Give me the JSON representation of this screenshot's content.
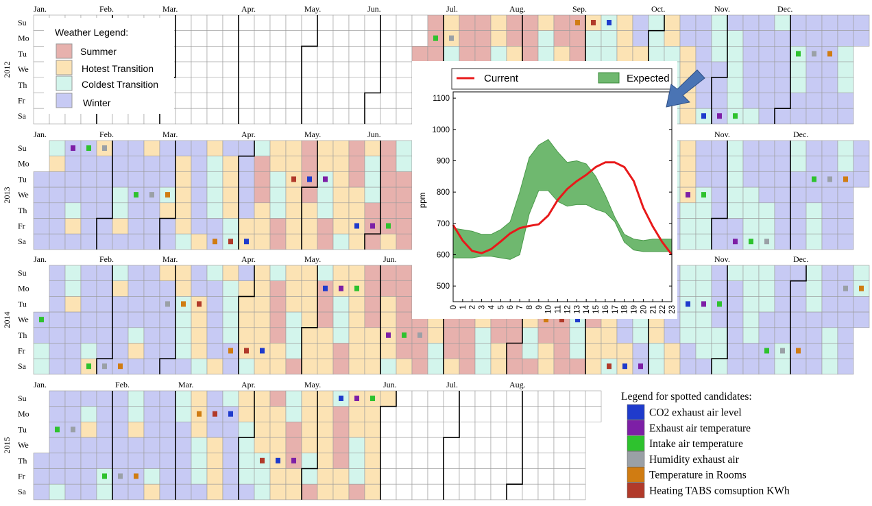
{
  "months": [
    "Jan.",
    "Feb.",
    "Mar.",
    "Apr.",
    "May.",
    "Jun.",
    "Jul.",
    "Aug.",
    "Sep.",
    "Oct.",
    "Nov.",
    "Dec."
  ],
  "weekdays": [
    "Su",
    "Mo",
    "Tu",
    "We",
    "Th",
    "Fr",
    "Sa"
  ],
  "years": [
    "2012",
    "2013",
    "2014",
    "2015"
  ],
  "weather_legend": {
    "title": "Weather Legend:",
    "items": [
      {
        "label": "Summer",
        "color": "#e7b1ad"
      },
      {
        "label": "Hotest Transition",
        "color": "#fce3b4"
      },
      {
        "label": "Coldest Transition",
        "color": "#d3f5ec"
      },
      {
        "label": "Winter",
        "color": "#c7caf4"
      }
    ]
  },
  "candidate_legend": {
    "title": "Legend for spotted candidates:",
    "items": [
      {
        "label": "CO2 exhaust air level",
        "color": "#1f3bcc"
      },
      {
        "label": "Exhaust air temperature",
        "color": "#7d1fa6"
      },
      {
        "label": "Intake air temperature",
        "color": "#2ec22e"
      },
      {
        "label": "Humidity exhaust air",
        "color": "#9aa0a6"
      },
      {
        "label": "Temperature in Rooms",
        "color": "#d07c12"
      },
      {
        "label": "Heating TABS comsuption KWh",
        "color": "#b13a2a"
      }
    ]
  },
  "chart_data": {
    "type": "line",
    "xlabel": "",
    "ylabel": "ppm",
    "x": [
      0,
      1,
      2,
      3,
      4,
      5,
      6,
      7,
      8,
      9,
      10,
      11,
      12,
      13,
      14,
      15,
      16,
      17,
      18,
      19,
      20,
      21,
      22,
      23
    ],
    "xlim": [
      0,
      23
    ],
    "ylim": [
      450,
      1120
    ],
    "yticks": [
      500,
      600,
      700,
      800,
      900,
      1000,
      1100
    ],
    "legend_position": "top",
    "series": [
      {
        "name": "Current",
        "color": "#e8191a",
        "values": [
          695,
          645,
          612,
          605,
          618,
          642,
          668,
          685,
          692,
          697,
          725,
          775,
          810,
          835,
          855,
          880,
          895,
          895,
          880,
          835,
          750,
          690,
          640,
          600
        ]
      },
      {
        "name": "Expected",
        "color": "#6fb86f",
        "type": "band",
        "upper": [
          685,
          680,
          675,
          665,
          665,
          680,
          705,
          800,
          910,
          950,
          968,
          928,
          895,
          900,
          890,
          850,
          790,
          720,
          665,
          650,
          645,
          650,
          650,
          650
        ],
        "lower": [
          590,
          590,
          590,
          595,
          595,
          590,
          585,
          600,
          730,
          805,
          805,
          770,
          755,
          760,
          760,
          745,
          735,
          705,
          640,
          615,
          610,
          610,
          610,
          610
        ]
      }
    ]
  },
  "palette": {
    "summer": "#e7b1ad",
    "hot": "#fce3b4",
    "cold": "#d3f5ec",
    "winter": "#c7caf4",
    "arrow": "#4a74b4"
  }
}
